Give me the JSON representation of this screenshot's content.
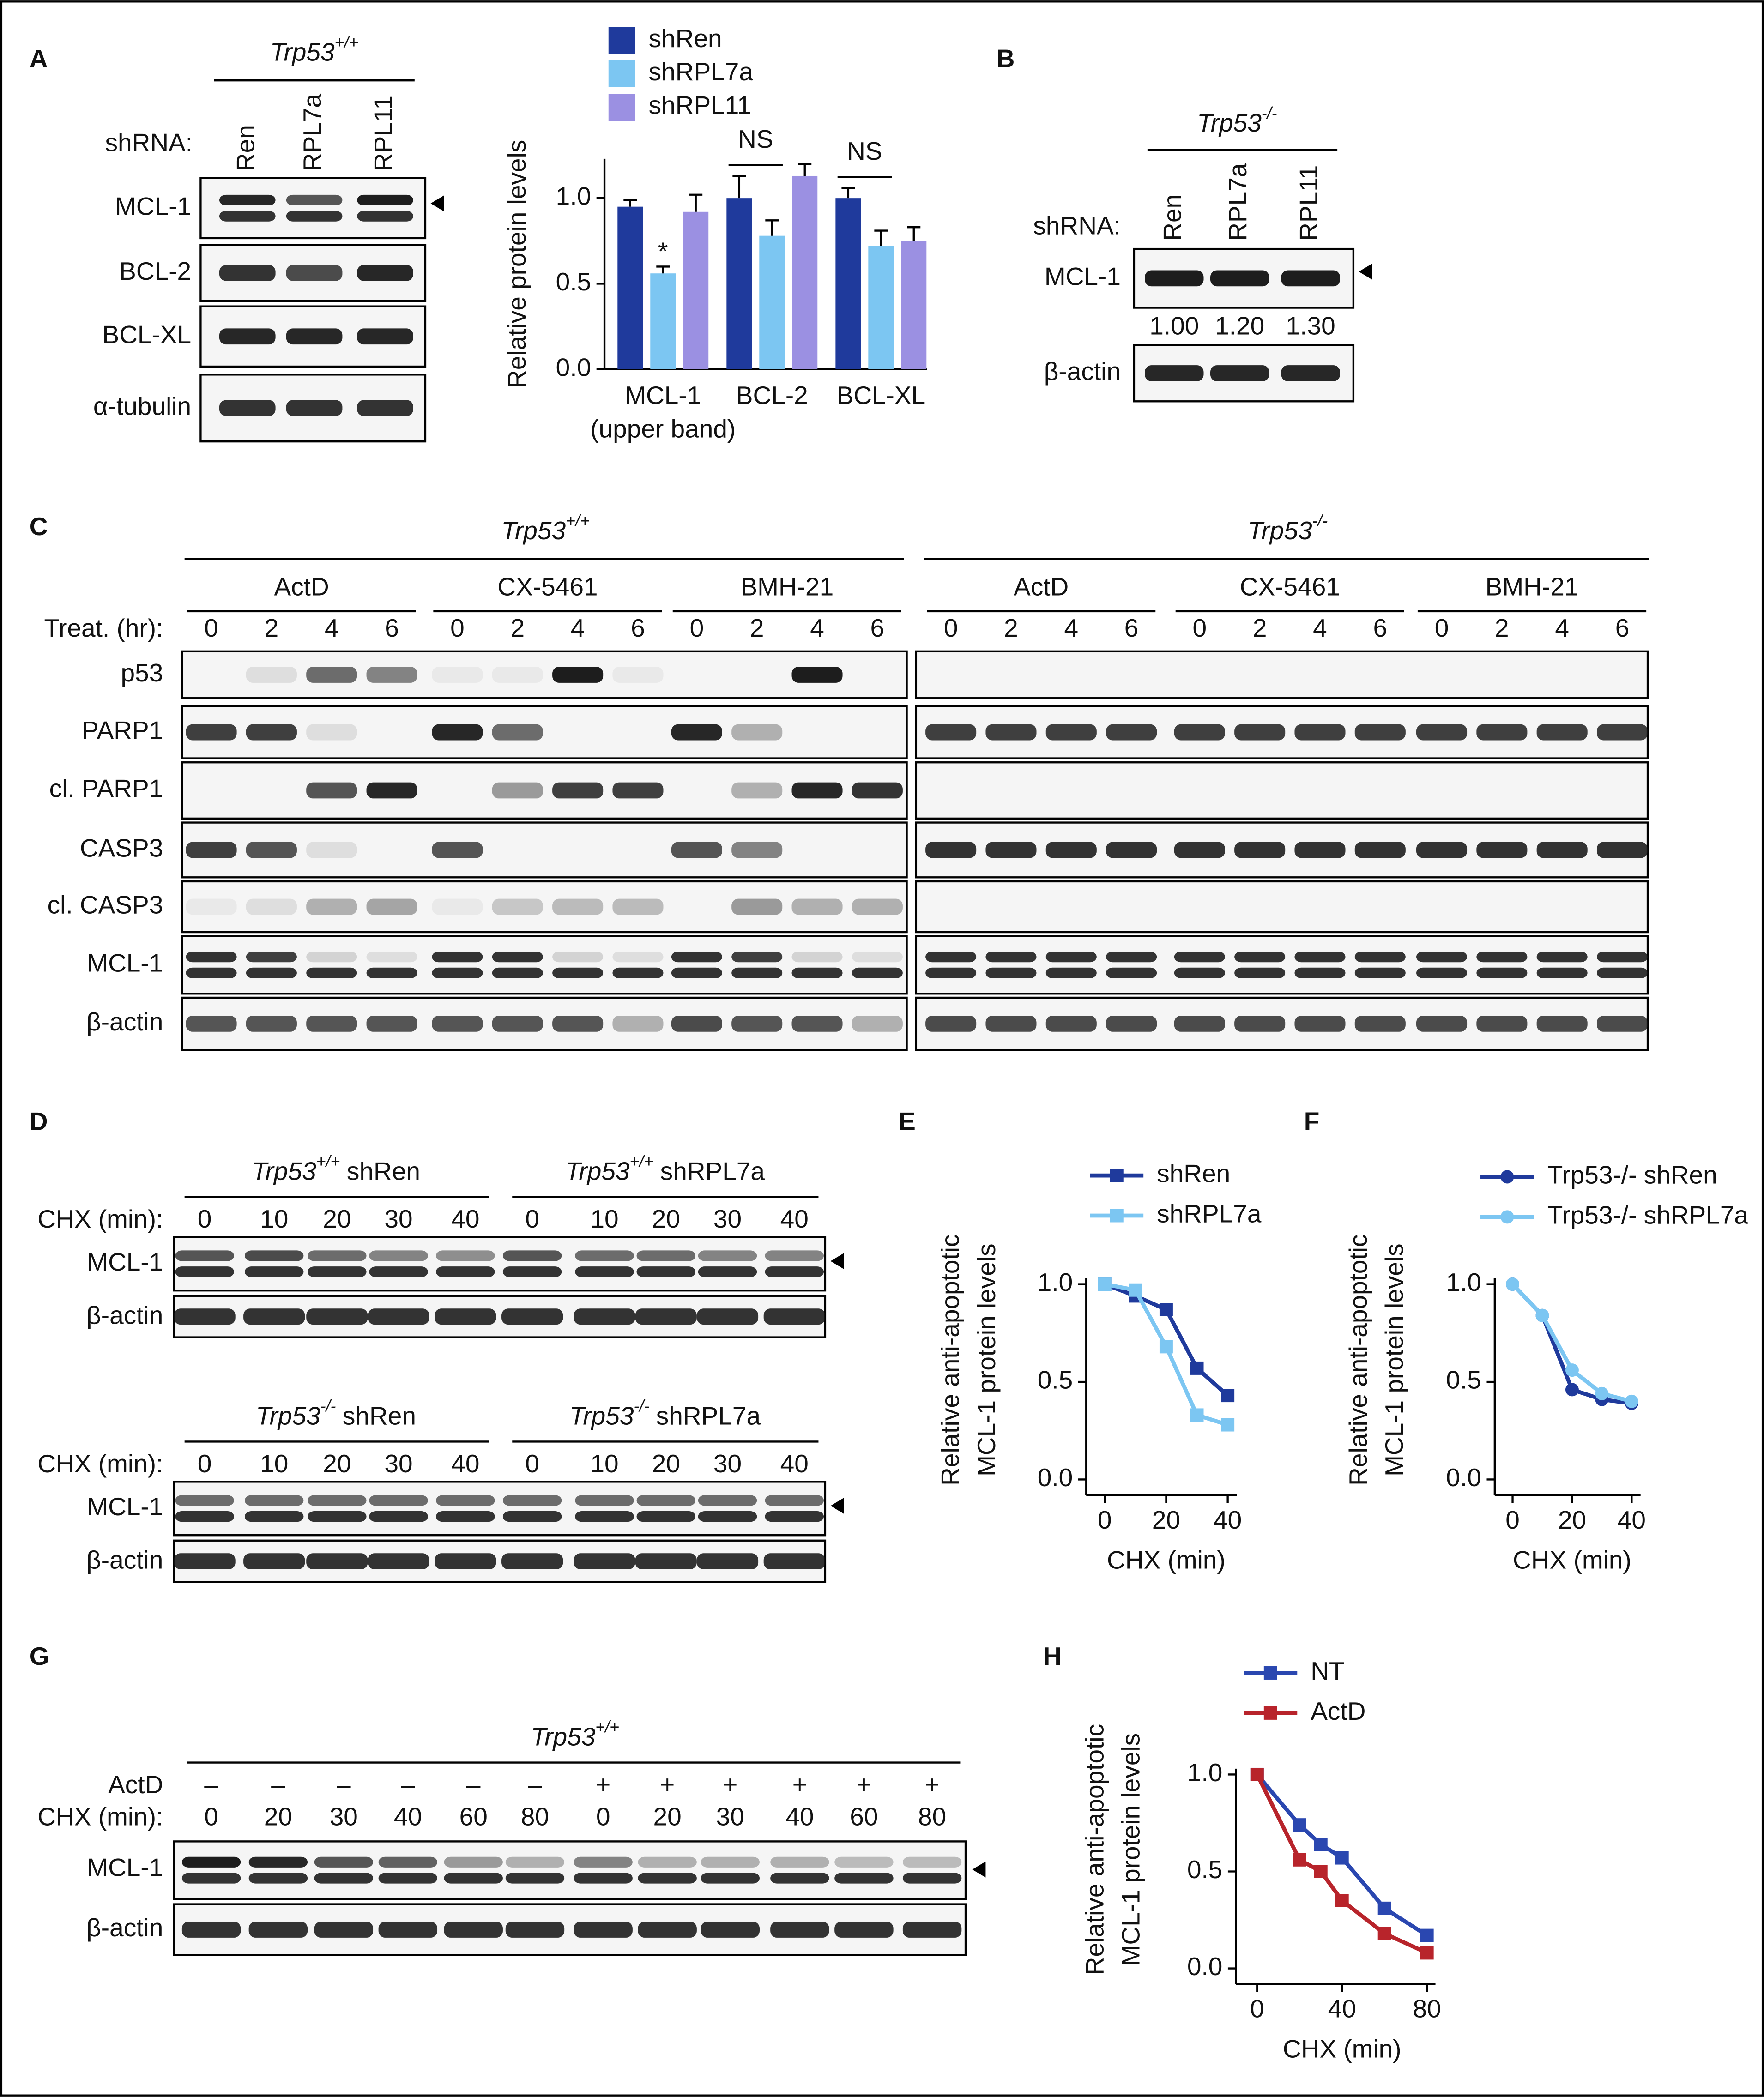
{
  "panel_labels": [
    "A",
    "B",
    "C",
    "D",
    "E",
    "F",
    "G",
    "H"
  ],
  "panel_a": {
    "genotype": {
      "gene": "Trp53",
      "allele": "+/+"
    },
    "shrna_label": "shRNA:",
    "lanes": [
      "Ren",
      "RPL7a",
      "RPL11"
    ],
    "rows": [
      "MCL-1",
      "BCL-2",
      "BCL-XL",
      "α-tubulin"
    ]
  },
  "panel_b": {
    "genotype": {
      "gene": "Trp53",
      "allele": "-/-"
    },
    "shrna_label": "shRNA:",
    "lanes": [
      "Ren",
      "RPL7a",
      "RPL11"
    ],
    "rows": [
      "MCL-1",
      "β-actin"
    ],
    "quantification": [
      "1.00",
      "1.20",
      "1.30"
    ]
  },
  "panel_c": {
    "groups": [
      {
        "genotype": {
          "gene": "Trp53",
          "allele": "+/+"
        }
      },
      {
        "genotype": {
          "gene": "Trp53",
          "allele": "-/-"
        }
      }
    ],
    "treatments": [
      "ActD",
      "CX-5461",
      "BMH-21"
    ],
    "time_label": "Treat. (hr):",
    "times": [
      0,
      2,
      4,
      6
    ],
    "rows": [
      "p53",
      "PARP1",
      "cl. PARP1",
      "CASP3",
      "cl. CASP3",
      "MCL-1",
      "β-actin"
    ]
  },
  "panel_d": {
    "time_label": "CHX (min):",
    "times": [
      0,
      10,
      20,
      30,
      40
    ],
    "rows": [
      "MCL-1",
      "β-actin"
    ],
    "blots": [
      {
        "conditions": [
          {
            "gene": "Trp53",
            "allele": "+/+",
            "shrna": "shRen"
          },
          {
            "gene": "Trp53",
            "allele": "+/+",
            "shrna": "shRPL7a"
          }
        ]
      },
      {
        "conditions": [
          {
            "gene": "Trp53",
            "allele": "-/-",
            "shrna": "shRen"
          },
          {
            "gene": "Trp53",
            "allele": "-/-",
            "shrna": "shRPL7a"
          }
        ]
      }
    ]
  },
  "panel_g": {
    "genotype": {
      "gene": "Trp53",
      "allele": "+/+"
    },
    "actd_label": "ActD",
    "actd": [
      "–",
      "–",
      "–",
      "–",
      "–",
      "–",
      "+",
      "+",
      "+",
      "+",
      "+",
      "+"
    ],
    "time_label": "CHX (min):",
    "times": [
      0,
      20,
      30,
      40,
      60,
      80
    ],
    "rows": [
      "MCL-1",
      "β-actin"
    ]
  },
  "chart_data": [
    {
      "type": "bar",
      "ylabel": "Relative protein levels",
      "categories": [
        "MCL-1",
        "BCL-2",
        "BCL-XL"
      ],
      "categories_note": "(upper band)",
      "series": [
        {
          "name": "shRen",
          "color": "#1f3a9c",
          "values": [
            0.95,
            1.0,
            1.0
          ],
          "errors": [
            0.04,
            0.13,
            0.06
          ]
        },
        {
          "name": "shRPL7a",
          "color": "#7cc6f2",
          "values": [
            0.56,
            0.78,
            0.72
          ],
          "errors": [
            0.04,
            0.09,
            0.09
          ]
        },
        {
          "name": "shRPL11",
          "color": "#9b90e2",
          "values": [
            0.92,
            1.13,
            0.75
          ],
          "errors": [
            0.1,
            0.07,
            0.08
          ]
        }
      ],
      "significance": [
        "*",
        "NS",
        "NS"
      ],
      "ylim": [
        0,
        1.23
      ],
      "yticks": [
        {
          "value": 0,
          "label": "0.0"
        },
        {
          "value": 0.5,
          "label": "0.5"
        },
        {
          "value": 1,
          "label": "1.0"
        }
      ]
    },
    {
      "type": "line",
      "xlabel": "CHX (min)",
      "ylabel": [
        "Relative anti-apoptotic",
        "MCL-1 protein levels"
      ],
      "x": [
        0,
        10,
        20,
        30,
        40
      ],
      "series": [
        {
          "name": "shRen",
          "color": "#1f3a9c",
          "marker": "square",
          "values": [
            1.0,
            0.94,
            0.87,
            0.57,
            0.43
          ]
        },
        {
          "name": "shRPL7a",
          "color": "#7cc6f2",
          "marker": "square",
          "values": [
            1.0,
            0.97,
            0.68,
            0.33,
            0.28
          ]
        }
      ],
      "xlim": [
        -6,
        43
      ],
      "xticks": [
        0,
        20,
        40
      ],
      "ylim": [
        -0.08,
        1.03
      ],
      "yticks": [
        {
          "value": 0,
          "label": "0.0"
        },
        {
          "value": 0.5,
          "label": "0.5"
        },
        {
          "value": 1,
          "label": "1.0"
        }
      ]
    },
    {
      "type": "line",
      "xlabel": "CHX (min)",
      "ylabel": [
        "Relative anti-apoptotic",
        "MCL-1 protein levels"
      ],
      "x": [
        0,
        10,
        20,
        30,
        40
      ],
      "series": [
        {
          "name": "Trp53-/- shRen",
          "color": "#1f3a9c",
          "marker": "circle",
          "values": [
            1.0,
            0.84,
            0.46,
            0.41,
            0.39
          ]
        },
        {
          "name": "Trp53-/- shRPL7a",
          "color": "#7cc6f2",
          "marker": "circle",
          "values": [
            1.0,
            0.84,
            0.56,
            0.44,
            0.4
          ]
        }
      ],
      "xlim": [
        -6,
        43
      ],
      "xticks": [
        0,
        20,
        40
      ],
      "ylim": [
        -0.08,
        1.03
      ],
      "yticks": [
        {
          "value": 0,
          "label": "0.0"
        },
        {
          "value": 0.5,
          "label": "0.5"
        },
        {
          "value": 1,
          "label": "1.0"
        }
      ]
    },
    {
      "type": "line",
      "xlabel": "CHX (min)",
      "ylabel": [
        "Relative anti-apoptotic",
        "MCL-1 protein levels"
      ],
      "x": [
        0,
        20,
        30,
        40,
        60,
        80
      ],
      "series": [
        {
          "name": "NT",
          "color": "#2a47b0",
          "marker": "square",
          "values": [
            1.0,
            0.74,
            0.64,
            0.57,
            0.31,
            0.17
          ]
        },
        {
          "name": "ActD",
          "color": "#b8242b",
          "marker": "square",
          "values": [
            1.0,
            0.56,
            0.5,
            0.35,
            0.18,
            0.08
          ]
        }
      ],
      "xlim": [
        -10,
        84
      ],
      "xticks": [
        0,
        40,
        80
      ],
      "ylim": [
        -0.08,
        1.03
      ],
      "yticks": [
        {
          "value": 0,
          "label": "0.0"
        },
        {
          "value": 0.5,
          "label": "0.5"
        },
        {
          "value": 1,
          "label": "1.0"
        }
      ]
    }
  ]
}
